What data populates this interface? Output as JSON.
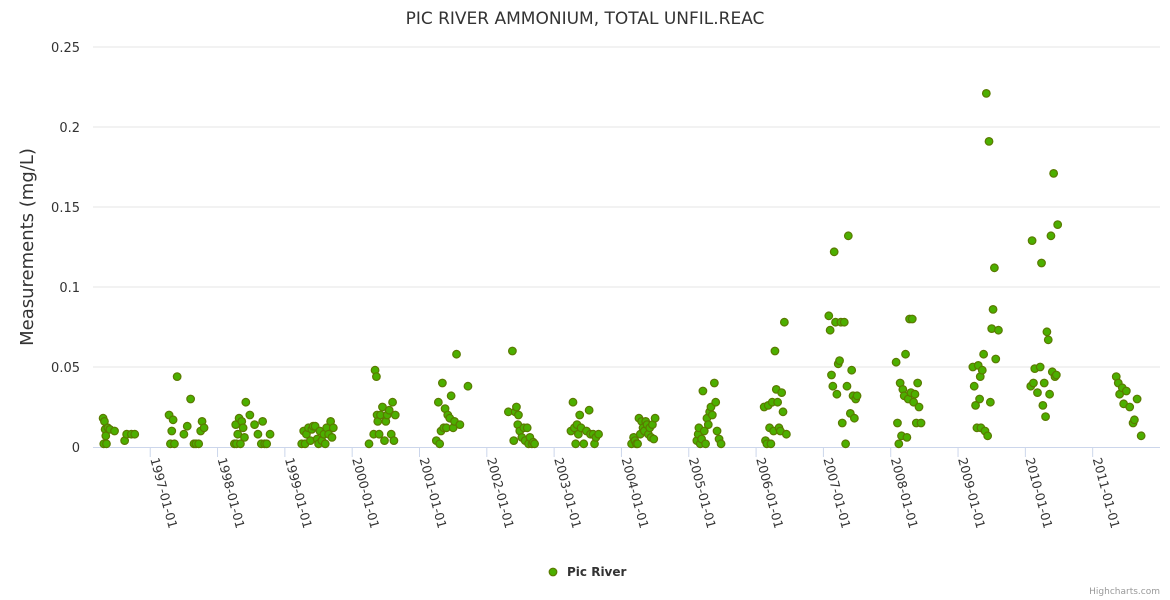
{
  "chart_data": {
    "type": "scatter",
    "title": "PIC RIVER AMMONIUM, TOTAL UNFIL.REAC",
    "xlabel": "",
    "ylabel": "Measurements (mg/L)",
    "ylim": [
      0,
      0.25
    ],
    "yticks": [
      "0",
      "0.05",
      "0.1",
      "0.15",
      "0.2",
      "0.25"
    ],
    "xlim": [
      1996.15,
      2012.0
    ],
    "xticks": [
      {
        "label": "1997-01-01",
        "value": 1997.0
      },
      {
        "label": "1998-01-01",
        "value": 1998.0
      },
      {
        "label": "1999-01-01",
        "value": 1999.0
      },
      {
        "label": "2000-01-01",
        "value": 2000.0
      },
      {
        "label": "2001-01-01",
        "value": 2001.0
      },
      {
        "label": "2002-01-01",
        "value": 2002.0
      },
      {
        "label": "2003-01-01",
        "value": 2003.0
      },
      {
        "label": "2004-01-01",
        "value": 2004.0
      },
      {
        "label": "2005-01-01",
        "value": 2005.0
      },
      {
        "label": "2006-01-01",
        "value": 2006.0
      },
      {
        "label": "2007-01-01",
        "value": 2007.0
      },
      {
        "label": "2008-01-01",
        "value": 2008.0
      },
      {
        "label": "2009-01-01",
        "value": 2009.0
      },
      {
        "label": "2010-01-01",
        "value": 2010.0
      },
      {
        "label": "2011-01-01",
        "value": 2011.0
      }
    ],
    "series": [
      {
        "name": "Pic River",
        "color": "#4caf00",
        "stroke": "#5a7a00",
        "points": [
          [
            1996.3,
            0.018
          ],
          [
            1996.31,
            0.002
          ],
          [
            1996.32,
            0.016
          ],
          [
            1996.33,
            0.011
          ],
          [
            1996.34,
            0.007
          ],
          [
            1996.35,
            0.002
          ],
          [
            1996.37,
            0.012
          ],
          [
            1996.4,
            0.011
          ],
          [
            1996.47,
            0.01
          ],
          [
            1996.62,
            0.004
          ],
          [
            1996.65,
            0.008
          ],
          [
            1996.72,
            0.008
          ],
          [
            1996.77,
            0.008
          ],
          [
            1997.28,
            0.02
          ],
          [
            1997.3,
            0.002
          ],
          [
            1997.32,
            0.01
          ],
          [
            1997.34,
            0.017
          ],
          [
            1997.36,
            0.002
          ],
          [
            1997.4,
            0.044
          ],
          [
            1997.5,
            0.008
          ],
          [
            1997.55,
            0.013
          ],
          [
            1997.6,
            0.03
          ],
          [
            1997.65,
            0.002
          ],
          [
            1997.68,
            0.002
          ],
          [
            1997.72,
            0.002
          ],
          [
            1997.75,
            0.01
          ],
          [
            1997.77,
            0.016
          ],
          [
            1997.8,
            0.012
          ],
          [
            1998.25,
            0.002
          ],
          [
            1998.27,
            0.014
          ],
          [
            1998.28,
            0.002
          ],
          [
            1998.3,
            0.008
          ],
          [
            1998.32,
            0.018
          ],
          [
            1998.34,
            0.002
          ],
          [
            1998.36,
            0.016
          ],
          [
            1998.38,
            0.012
          ],
          [
            1998.4,
            0.006
          ],
          [
            1998.42,
            0.028
          ],
          [
            1998.48,
            0.02
          ],
          [
            1998.55,
            0.014
          ],
          [
            1998.6,
            0.008
          ],
          [
            1998.65,
            0.002
          ],
          [
            1998.67,
            0.016
          ],
          [
            1998.7,
            0.002
          ],
          [
            1998.73,
            0.002
          ],
          [
            1998.78,
            0.008
          ],
          [
            1999.25,
            0.002
          ],
          [
            1999.28,
            0.01
          ],
          [
            1999.3,
            0.002
          ],
          [
            1999.32,
            0.008
          ],
          [
            1999.35,
            0.012
          ],
          [
            1999.38,
            0.004
          ],
          [
            1999.4,
            0.011
          ],
          [
            1999.42,
            0.013
          ],
          [
            1999.45,
            0.013
          ],
          [
            1999.48,
            0.005
          ],
          [
            1999.5,
            0.002
          ],
          [
            1999.52,
            0.01
          ],
          [
            1999.55,
            0.004
          ],
          [
            1999.58,
            0.008
          ],
          [
            1999.6,
            0.002
          ],
          [
            1999.62,
            0.012
          ],
          [
            1999.65,
            0.008
          ],
          [
            1999.68,
            0.016
          ],
          [
            1999.7,
            0.006
          ],
          [
            1999.72,
            0.012
          ],
          [
            2000.25,
            0.002
          ],
          [
            2000.32,
            0.008
          ],
          [
            2000.34,
            0.048
          ],
          [
            2000.36,
            0.044
          ],
          [
            2000.37,
            0.02
          ],
          [
            2000.38,
            0.016
          ],
          [
            2000.4,
            0.008
          ],
          [
            2000.42,
            0.02
          ],
          [
            2000.45,
            0.025
          ],
          [
            2000.48,
            0.004
          ],
          [
            2000.5,
            0.016
          ],
          [
            2000.52,
            0.02
          ],
          [
            2000.55,
            0.023
          ],
          [
            2000.58,
            0.008
          ],
          [
            2000.6,
            0.028
          ],
          [
            2000.62,
            0.004
          ],
          [
            2000.64,
            0.02
          ],
          [
            2001.25,
            0.004
          ],
          [
            2001.28,
            0.028
          ],
          [
            2001.3,
            0.002
          ],
          [
            2001.32,
            0.01
          ],
          [
            2001.34,
            0.04
          ],
          [
            2001.36,
            0.012
          ],
          [
            2001.38,
            0.024
          ],
          [
            2001.4,
            0.012
          ],
          [
            2001.42,
            0.02
          ],
          [
            2001.45,
            0.018
          ],
          [
            2001.47,
            0.032
          ],
          [
            2001.5,
            0.012
          ],
          [
            2001.52,
            0.016
          ],
          [
            2001.55,
            0.058
          ],
          [
            2001.6,
            0.014
          ],
          [
            2001.72,
            0.038
          ],
          [
            2002.32,
            0.022
          ],
          [
            2002.38,
            0.06
          ],
          [
            2002.4,
            0.004
          ],
          [
            2002.42,
            0.022
          ],
          [
            2002.44,
            0.025
          ],
          [
            2002.46,
            0.014
          ],
          [
            2002.47,
            0.02
          ],
          [
            2002.49,
            0.01
          ],
          [
            2002.52,
            0.006
          ],
          [
            2002.55,
            0.012
          ],
          [
            2002.57,
            0.004
          ],
          [
            2002.6,
            0.012
          ],
          [
            2002.62,
            0.002
          ],
          [
            2002.64,
            0.006
          ],
          [
            2002.67,
            0.002
          ],
          [
            2002.69,
            0.003
          ],
          [
            2002.71,
            0.002
          ],
          [
            2003.25,
            0.01
          ],
          [
            2003.28,
            0.028
          ],
          [
            2003.3,
            0.012
          ],
          [
            2003.32,
            0.002
          ],
          [
            2003.34,
            0.014
          ],
          [
            2003.36,
            0.008
          ],
          [
            2003.38,
            0.02
          ],
          [
            2003.4,
            0.012
          ],
          [
            2003.44,
            0.002
          ],
          [
            2003.48,
            0.01
          ],
          [
            2003.52,
            0.023
          ],
          [
            2003.54,
            0.008
          ],
          [
            2003.58,
            0.008
          ],
          [
            2003.6,
            0.002
          ],
          [
            2003.62,
            0.006
          ],
          [
            2003.66,
            0.008
          ],
          [
            2004.15,
            0.002
          ],
          [
            2004.18,
            0.006
          ],
          [
            2004.2,
            0.004
          ],
          [
            2004.22,
            0.002
          ],
          [
            2004.24,
            0.002
          ],
          [
            2004.26,
            0.018
          ],
          [
            2004.28,
            0.008
          ],
          [
            2004.3,
            0.016
          ],
          [
            2004.32,
            0.012
          ],
          [
            2004.34,
            0.01
          ],
          [
            2004.36,
            0.016
          ],
          [
            2004.38,
            0.014
          ],
          [
            2004.4,
            0.008
          ],
          [
            2004.42,
            0.012
          ],
          [
            2004.44,
            0.006
          ],
          [
            2004.46,
            0.014
          ],
          [
            2004.48,
            0.005
          ],
          [
            2004.5,
            0.018
          ],
          [
            2005.12,
            0.004
          ],
          [
            2005.14,
            0.008
          ],
          [
            2005.15,
            0.012
          ],
          [
            2005.17,
            0.002
          ],
          [
            2005.19,
            0.005
          ],
          [
            2005.21,
            0.035
          ],
          [
            2005.23,
            0.01
          ],
          [
            2005.25,
            0.002
          ],
          [
            2005.27,
            0.018
          ],
          [
            2005.29,
            0.014
          ],
          [
            2005.31,
            0.022
          ],
          [
            2005.33,
            0.025
          ],
          [
            2005.35,
            0.02
          ],
          [
            2005.38,
            0.04
          ],
          [
            2005.4,
            0.028
          ],
          [
            2005.42,
            0.01
          ],
          [
            2005.45,
            0.005
          ],
          [
            2005.48,
            0.002
          ],
          [
            2006.12,
            0.025
          ],
          [
            2006.14,
            0.004
          ],
          [
            2006.16,
            0.002
          ],
          [
            2006.18,
            0.026
          ],
          [
            2006.2,
            0.012
          ],
          [
            2006.22,
            0.002
          ],
          [
            2006.24,
            0.028
          ],
          [
            2006.26,
            0.01
          ],
          [
            2006.28,
            0.06
          ],
          [
            2006.3,
            0.036
          ],
          [
            2006.32,
            0.028
          ],
          [
            2006.34,
            0.012
          ],
          [
            2006.36,
            0.01
          ],
          [
            2006.38,
            0.034
          ],
          [
            2006.4,
            0.022
          ],
          [
            2006.42,
            0.078
          ],
          [
            2006.45,
            0.008
          ],
          [
            2007.08,
            0.082
          ],
          [
            2007.1,
            0.073
          ],
          [
            2007.12,
            0.045
          ],
          [
            2007.14,
            0.038
          ],
          [
            2007.16,
            0.122
          ],
          [
            2007.18,
            0.078
          ],
          [
            2007.2,
            0.033
          ],
          [
            2007.22,
            0.052
          ],
          [
            2007.24,
            0.054
          ],
          [
            2007.26,
            0.078
          ],
          [
            2007.28,
            0.015
          ],
          [
            2007.31,
            0.078
          ],
          [
            2007.33,
            0.002
          ],
          [
            2007.35,
            0.038
          ],
          [
            2007.37,
            0.132
          ],
          [
            2007.4,
            0.021
          ],
          [
            2007.42,
            0.048
          ],
          [
            2007.44,
            0.032
          ],
          [
            2007.46,
            0.018
          ],
          [
            2007.48,
            0.03
          ],
          [
            2007.5,
            0.032
          ],
          [
            2008.08,
            0.053
          ],
          [
            2008.1,
            0.015
          ],
          [
            2008.12,
            0.002
          ],
          [
            2008.14,
            0.04
          ],
          [
            2008.16,
            0.007
          ],
          [
            2008.18,
            0.036
          ],
          [
            2008.2,
            0.032
          ],
          [
            2008.22,
            0.058
          ],
          [
            2008.24,
            0.006
          ],
          [
            2008.26,
            0.03
          ],
          [
            2008.28,
            0.08
          ],
          [
            2008.3,
            0.034
          ],
          [
            2008.32,
            0.08
          ],
          [
            2008.34,
            0.028
          ],
          [
            2008.36,
            0.033
          ],
          [
            2008.38,
            0.015
          ],
          [
            2008.4,
            0.04
          ],
          [
            2008.42,
            0.025
          ],
          [
            2008.45,
            0.015
          ],
          [
            2009.22,
            0.05
          ],
          [
            2009.24,
            0.038
          ],
          [
            2009.26,
            0.026
          ],
          [
            2009.28,
            0.012
          ],
          [
            2009.3,
            0.051
          ],
          [
            2009.32,
            0.03
          ],
          [
            2009.33,
            0.044
          ],
          [
            2009.34,
            0.012
          ],
          [
            2009.36,
            0.048
          ],
          [
            2009.38,
            0.058
          ],
          [
            2009.4,
            0.01
          ],
          [
            2009.42,
            0.221
          ],
          [
            2009.44,
            0.007
          ],
          [
            2009.46,
            0.191
          ],
          [
            2009.48,
            0.028
          ],
          [
            2009.5,
            0.074
          ],
          [
            2009.52,
            0.086
          ],
          [
            2009.54,
            0.112
          ],
          [
            2009.56,
            0.055
          ],
          [
            2009.6,
            0.073
          ],
          [
            2010.08,
            0.038
          ],
          [
            2010.1,
            0.129
          ],
          [
            2010.12,
            0.04
          ],
          [
            2010.14,
            0.049
          ],
          [
            2010.18,
            0.034
          ],
          [
            2010.22,
            0.05
          ],
          [
            2010.24,
            0.115
          ],
          [
            2010.26,
            0.026
          ],
          [
            2010.28,
            0.04
          ],
          [
            2010.3,
            0.019
          ],
          [
            2010.32,
            0.072
          ],
          [
            2010.34,
            0.067
          ],
          [
            2010.36,
            0.033
          ],
          [
            2010.38,
            0.132
          ],
          [
            2010.4,
            0.047
          ],
          [
            2010.42,
            0.171
          ],
          [
            2010.44,
            0.044
          ],
          [
            2010.46,
            0.045
          ],
          [
            2010.48,
            0.139
          ],
          [
            2011.35,
            0.044
          ],
          [
            2011.38,
            0.04
          ],
          [
            2011.4,
            0.033
          ],
          [
            2011.44,
            0.037
          ],
          [
            2011.46,
            0.027
          ],
          [
            2011.5,
            0.035
          ],
          [
            2011.55,
            0.025
          ],
          [
            2011.6,
            0.015
          ],
          [
            2011.62,
            0.017
          ],
          [
            2011.66,
            0.03
          ],
          [
            2011.72,
            0.007
          ]
        ]
      }
    ],
    "legend": {
      "position": "bottom-center"
    }
  },
  "credits": "Highcharts.com"
}
